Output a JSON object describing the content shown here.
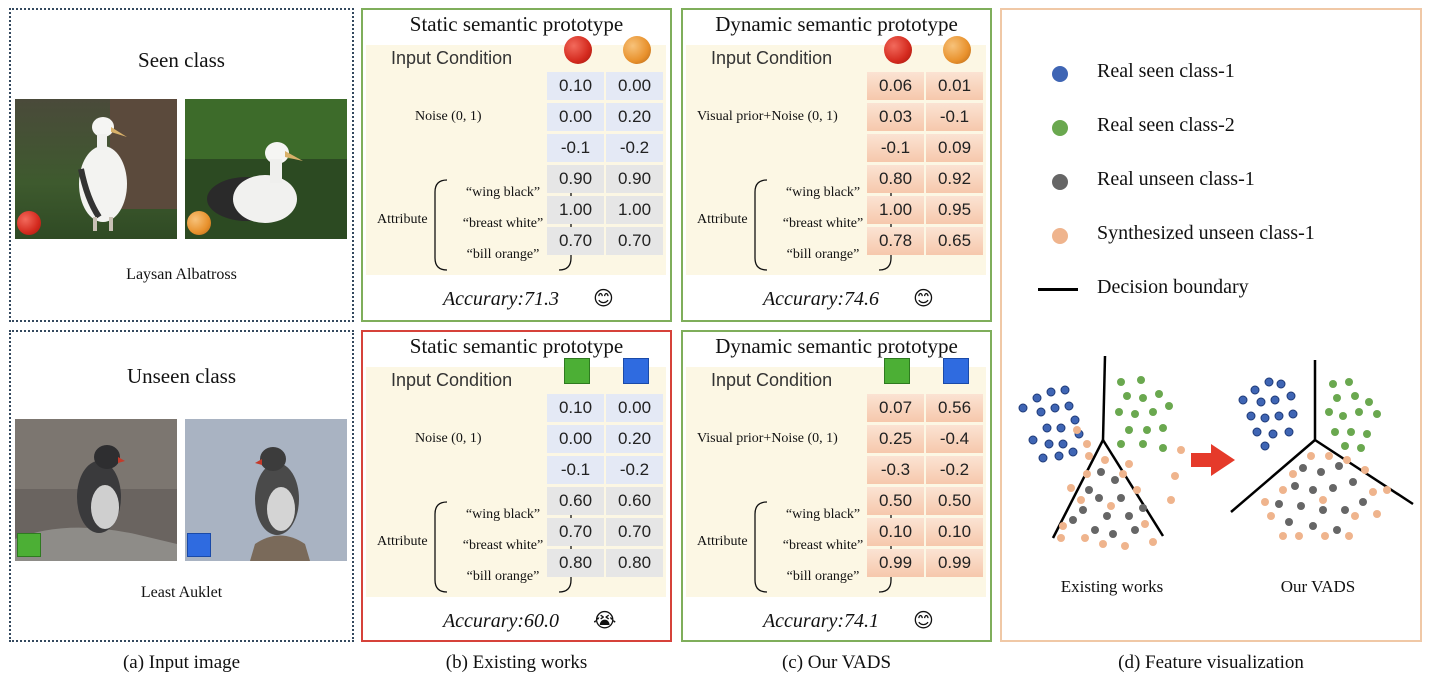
{
  "panel_a": {
    "seen_title": "Seen class",
    "seen_caption": "Laysan Albatross",
    "unseen_title": "Unseen class",
    "unseen_caption": "Least Auklet"
  },
  "panel_b_top": {
    "title": "Static semantic prototype",
    "input_condition": "Input Condition",
    "noise_label": "Noise (0, 1)",
    "attribute_label": "Attribute",
    "attributes": [
      "“wing black”",
      "“breast white”",
      "“bill orange”"
    ],
    "col1": [
      "0.10",
      "0.00",
      "-0.1",
      "0.90",
      "1.00",
      "0.70"
    ],
    "col2": [
      "0.00",
      "0.20",
      "-0.2",
      "0.90",
      "1.00",
      "0.70"
    ],
    "accuracy": "Accurary:71.3",
    "emoji": "😊"
  },
  "panel_c_top": {
    "title": "Dynamic semantic prototype",
    "input_condition": "Input Condition",
    "noise_label": "Visual prior+Noise (0, 1)",
    "attribute_label": "Attribute",
    "attributes": [
      "“wing black”",
      "“breast white”",
      "“bill orange”"
    ],
    "col1": [
      "0.06",
      "0.03",
      "-0.1",
      "0.80",
      "1.00",
      "0.78"
    ],
    "col2": [
      "0.01",
      "-0.1",
      "0.09",
      "0.92",
      "0.95",
      "0.65"
    ],
    "accuracy": "Accurary:74.6",
    "emoji": "😊"
  },
  "panel_b_bottom": {
    "title": "Static semantic prototype",
    "input_condition": "Input Condition",
    "noise_label": "Noise (0, 1)",
    "attribute_label": "Attribute",
    "attributes": [
      "“wing black”",
      "“breast white”",
      "“bill orange”"
    ],
    "col1": [
      "0.10",
      "0.00",
      "-0.1",
      "0.60",
      "0.70",
      "0.80"
    ],
    "col2": [
      "0.00",
      "0.20",
      "-0.2",
      "0.60",
      "0.70",
      "0.80"
    ],
    "accuracy": "Accurary:60.0",
    "emoji": "😭"
  },
  "panel_c_bottom": {
    "title": "Dynamic semantic prototype",
    "input_condition": "Input Condition",
    "noise_label": "Visual prior+Noise (0, 1)",
    "attribute_label": "Attribute",
    "attributes": [
      "“wing black”",
      "“breast white”",
      "“bill orange”"
    ],
    "col1": [
      "0.07",
      "0.25",
      "-0.3",
      "0.50",
      "0.10",
      "0.99"
    ],
    "col2": [
      "0.56",
      "-0.4",
      "-0.2",
      "0.50",
      "0.10",
      "0.99"
    ],
    "accuracy": "Accurary:74.1",
    "emoji": "😊"
  },
  "legend": [
    {
      "label": "Real seen class-1",
      "color": "#3f65b4"
    },
    {
      "label": "Real seen class-2",
      "color": "#6aa84f"
    },
    {
      "label": "Real unseen class-1",
      "color": "#666666"
    },
    {
      "label": "Synthesized unseen class-1",
      "color": "#efb48d"
    },
    {
      "label": "Decision boundary",
      "color": "#000000"
    }
  ],
  "panel_d": {
    "existing_label": "Existing works",
    "ours_label": "Our VADS"
  },
  "captions": {
    "a": "(a) Input image",
    "b": "(b) Existing works",
    "c": "(c) Our VADS",
    "d": "(d) Feature visualization"
  },
  "colors": {
    "seen1": "#3f65b4",
    "seen2": "#6aa84f",
    "unseen": "#666666",
    "synth": "#efb48d",
    "panel_green": "#7fae5b",
    "panel_red": "#d6423a",
    "panel_peach": "#f0c8a6",
    "marker_red": "#d42a1e",
    "marker_orange": "#e8912c",
    "marker_green": "#4caf35",
    "marker_blue": "#2f6be0"
  }
}
